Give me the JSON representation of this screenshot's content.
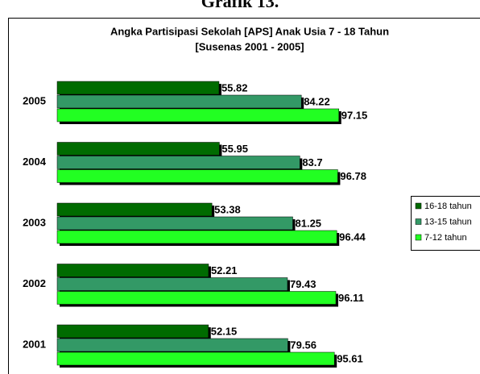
{
  "header": "Grafik 13.",
  "chart_data": {
    "type": "bar",
    "orientation": "horizontal",
    "title": "Angka Partisipasi Sekolah [APS] Anak Usia 7 - 18 Tahun",
    "subtitle": "[Susenas 2001 - 2005]",
    "categories": [
      "2005",
      "2004",
      "2003",
      "2002",
      "2001"
    ],
    "series": [
      {
        "name": "16-18 tahun",
        "color": "#006b00",
        "values": [
          55.82,
          55.95,
          53.38,
          52.21,
          52.15
        ]
      },
      {
        "name": "13-15 tahun",
        "color": "#339966",
        "values": [
          84.22,
          83.7,
          81.25,
          79.43,
          79.56
        ]
      },
      {
        "name": "7-12 tahun",
        "color": "#22ff22",
        "values": [
          97.15,
          96.78,
          96.44,
          96.11,
          95.61
        ]
      }
    ],
    "legend": "right"
  }
}
